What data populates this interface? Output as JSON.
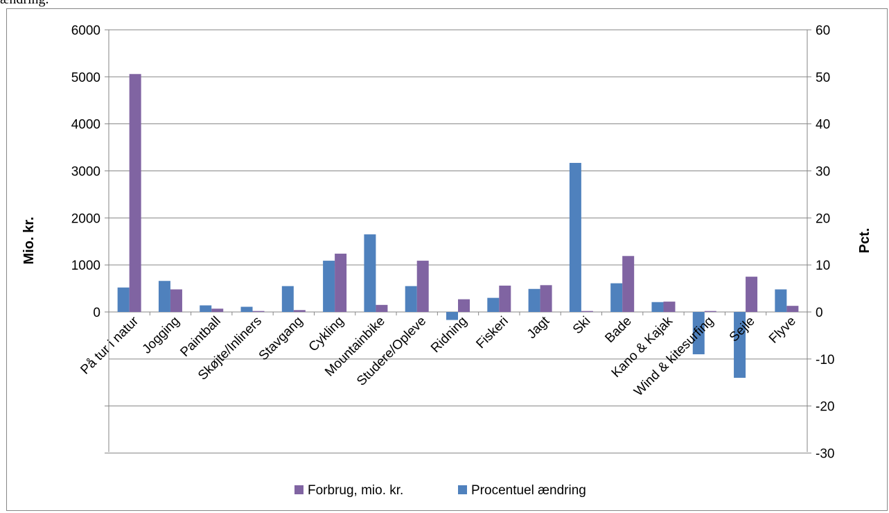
{
  "caption": "ændring.",
  "colors": {
    "forbrug": "#8064a2",
    "procent": "#4f81bd",
    "gridline": "#868686",
    "axis": "#868686"
  },
  "chart_data": {
    "type": "bar",
    "title": "",
    "ylabel": "Mio. kr.",
    "y2label": "Pct.",
    "ylim": [
      0,
      6000
    ],
    "y_ticks": [
      0,
      1000,
      2000,
      3000,
      4000,
      5000,
      6000
    ],
    "y2lim": [
      -30,
      60
    ],
    "y2_ticks": [
      -30,
      -20,
      -10,
      0,
      10,
      20,
      30,
      40,
      50,
      60
    ],
    "grid": true,
    "legend_position": "bottom",
    "categories": [
      "På tur i natur",
      "Jogging",
      "Paintball",
      "Skøjte/Inliners",
      "Stavgang",
      "Cykling",
      "Mountainbike",
      "Studere/Opleve",
      "Ridning",
      "Fiskeri",
      "Jagt",
      "Ski",
      "Bade",
      "Kano & Kajak",
      "Wind & kitesurfing",
      "Sejle",
      "Flyve"
    ],
    "series": [
      {
        "name": "Forbrug, mio. kr.",
        "axis": "left",
        "values": [
          5060,
          480,
          70,
          20,
          40,
          1240,
          150,
          1090,
          270,
          560,
          570,
          20,
          1190,
          220,
          20,
          750,
          130
        ]
      },
      {
        "name": "Procentuel ændring",
        "axis": "right",
        "values": [
          5.2,
          6.6,
          1.4,
          1.1,
          5.5,
          10.9,
          16.5,
          5.5,
          -1.7,
          3.0,
          4.9,
          31.7,
          6.1,
          2.1,
          -9.0,
          -14.0,
          4.8
        ]
      }
    ]
  }
}
